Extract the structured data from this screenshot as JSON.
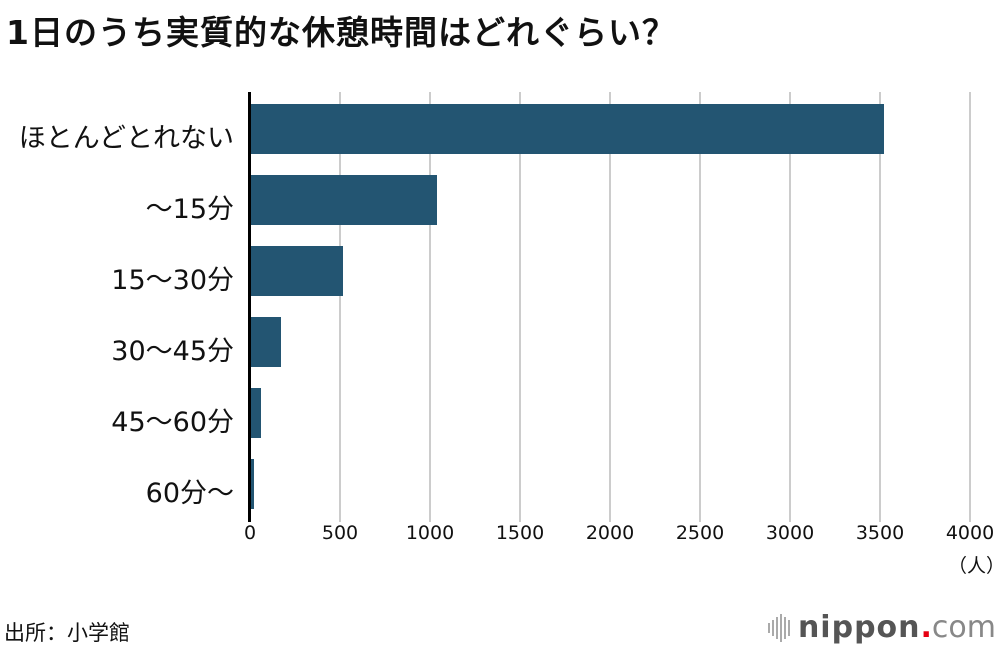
{
  "title": "1日のうち実質的な休憩時間はどれぐらい？",
  "chart_data": {
    "type": "bar",
    "orientation": "horizontal",
    "title": "1日のうち実質的な休憩時間はどれぐらい？",
    "categories": [
      "ほとんどとれない",
      "〜15分",
      "15〜30分",
      "30〜45分",
      "45〜60分",
      "60分〜"
    ],
    "values": [
      3520,
      1040,
      517,
      172,
      60,
      22
    ],
    "xlabel": "（人）",
    "ylabel": "",
    "xlim": [
      0,
      4000
    ],
    "x_ticks": [
      "0",
      "500",
      "1000",
      "1500",
      "2000",
      "2500",
      "3000",
      "3500",
      "4000"
    ],
    "grid": true,
    "bar_color": "#235572",
    "legend": null
  },
  "unit_label": "（人）",
  "source": "出所：小学館",
  "logo": {
    "main": "nippon",
    "dot": ".",
    "suffix": "com"
  }
}
